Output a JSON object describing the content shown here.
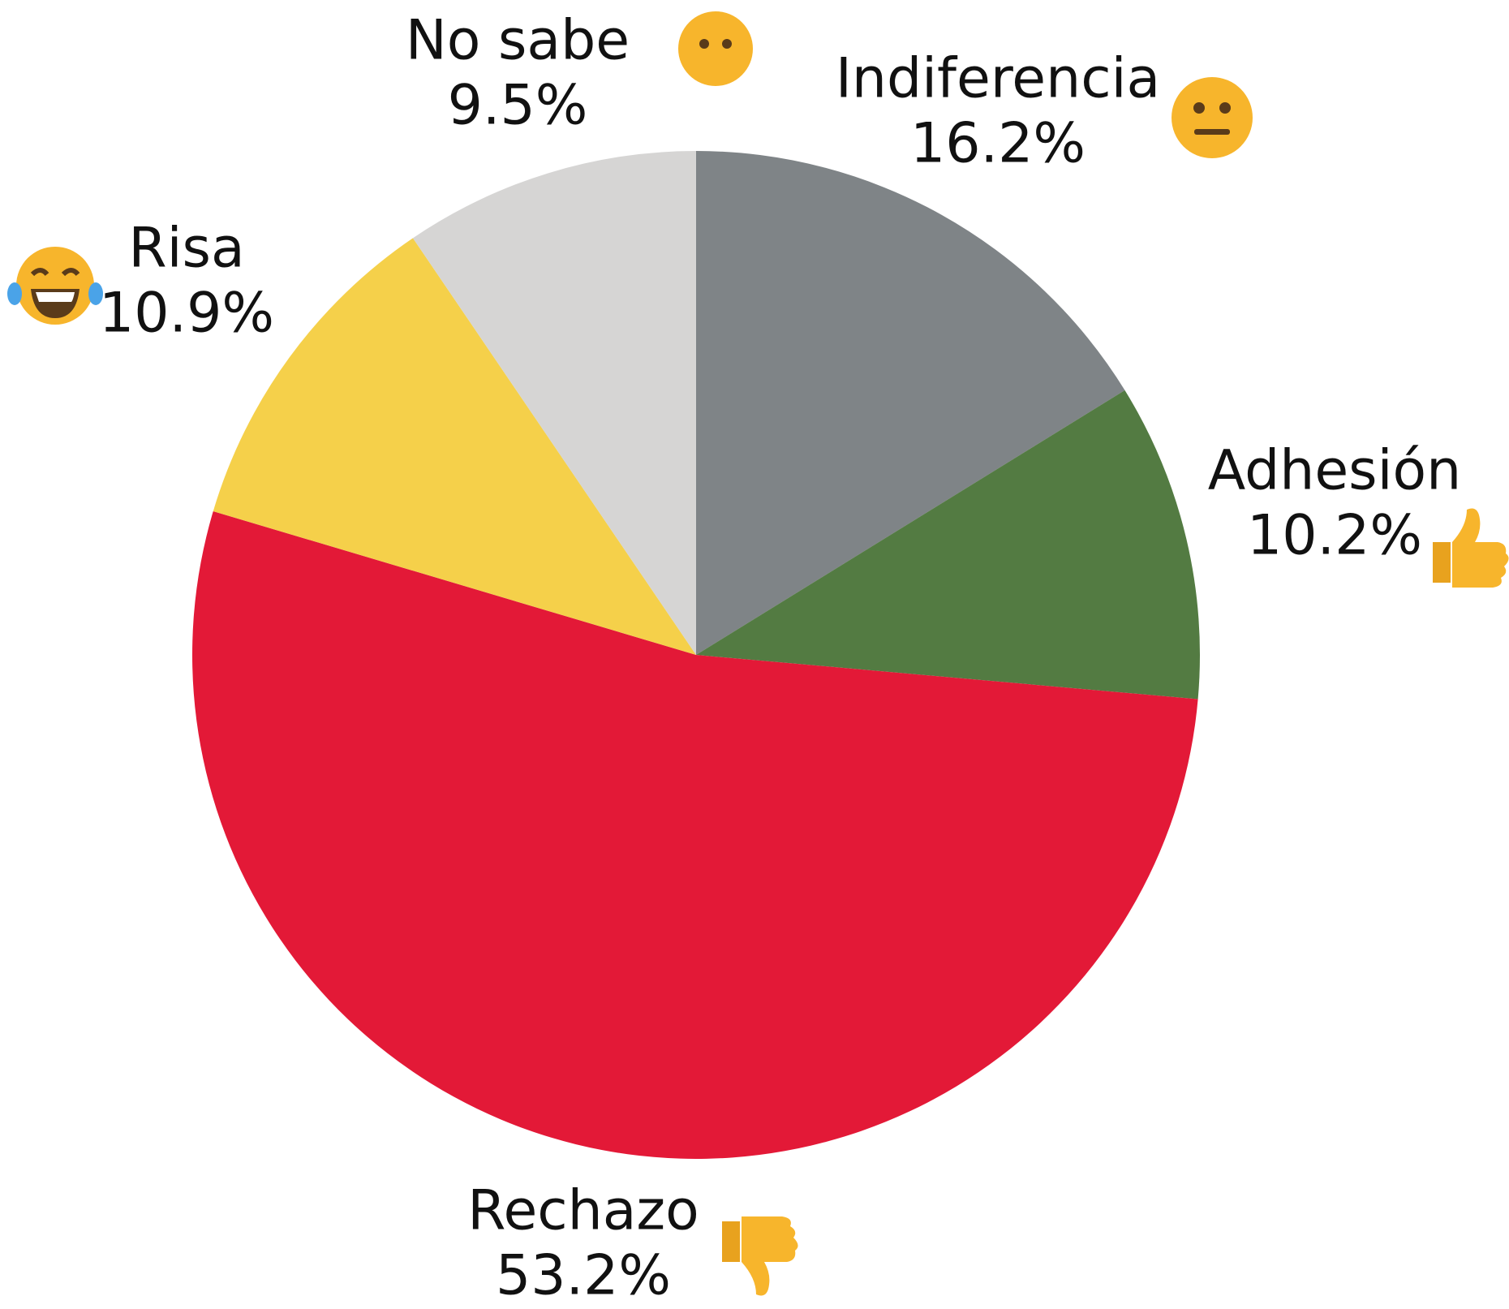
{
  "chart_data": {
    "type": "pie",
    "categories": [
      "Indiferencia",
      "Adhesión",
      "Rechazo",
      "Risa",
      "No sabe"
    ],
    "values": [
      16.2,
      10.2,
      53.2,
      10.9,
      9.5
    ],
    "value_labels": [
      "16.2%",
      "10.2%",
      "53.2%",
      "10.9%",
      "9.5%"
    ],
    "colors": [
      "#7f8487",
      "#537b42",
      "#e31937",
      "#f5d04a",
      "#d6d5d4"
    ]
  }
}
